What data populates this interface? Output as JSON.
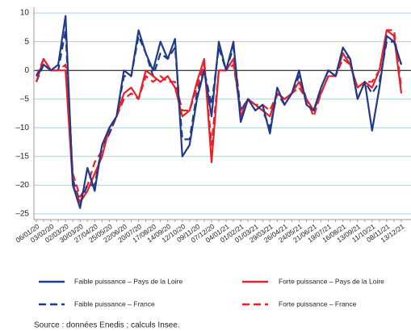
{
  "chart_data": {
    "type": "line",
    "categories": [
      "06/01/20",
      null,
      "03/02/20",
      null,
      "02/03/20",
      null,
      "30/03/20",
      null,
      "27/04/20",
      null,
      "25/05/20",
      null,
      "22/06/20",
      null,
      "20/07/20",
      null,
      "17/08/20",
      null,
      "14/09/20",
      null,
      "12/10/20",
      null,
      "09/11/20",
      null,
      "07/12/20",
      null,
      "04/01/21",
      null,
      "01/02/21",
      null,
      "01/03/21",
      null,
      "29/03/21",
      null,
      "26/04/21",
      null,
      "24/05/21",
      null,
      "21/06/21",
      null,
      "19/07/21",
      null,
      "16/08/21",
      null,
      "13/09/21",
      null,
      "11/10/21",
      null,
      "08/11/21",
      null,
      "13/12/21"
    ],
    "series": [
      {
        "name": "Faible puissance – Pays de la Loire",
        "color": "#1f3a8a",
        "dash": false,
        "values": [
          -1,
          1,
          0,
          1,
          9.5,
          -20,
          -24,
          -17,
          -21,
          -13,
          -10,
          -8,
          0,
          -1,
          7,
          3,
          0,
          5,
          2,
          5.5,
          -15,
          -13,
          -5,
          0,
          -8,
          5,
          0,
          5,
          -9,
          -5,
          -7,
          -6,
          -11,
          -3,
          -6,
          -4,
          0,
          -6,
          -7,
          -3,
          0,
          -1,
          4,
          2,
          -5,
          -2,
          -10.5,
          -3,
          6,
          5,
          1
        ]
      },
      {
        "name": "Forte puissance – Pays de la Loire",
        "color": "#e8202a",
        "dash": false,
        "values": [
          -2,
          2,
          0,
          0,
          0,
          -20,
          -23,
          -21,
          -18,
          -15,
          -10,
          -8,
          -4,
          -3,
          -5,
          0,
          -1,
          -2,
          -1,
          -3,
          -8,
          -7,
          -2,
          2,
          -16,
          0,
          0,
          2,
          -8,
          -5,
          -6,
          -7,
          -8,
          -4,
          -5,
          -4,
          -2,
          -5,
          -7,
          -4,
          -1,
          -1,
          3,
          1,
          -3,
          -2,
          -3,
          0,
          7,
          6,
          -4
        ]
      },
      {
        "name": "Faible puissance – France",
        "color": "#1f3a8a",
        "dash": true,
        "values": [
          -2,
          1,
          0,
          0,
          7,
          -19,
          -23,
          -20,
          -20,
          -13,
          -11,
          -8,
          -1,
          -1,
          6,
          3,
          -1,
          3,
          2,
          4,
          -12,
          -12,
          -4,
          0,
          -6,
          4,
          0,
          4,
          -7,
          -5,
          -6,
          -7,
          -10,
          -4,
          -6,
          -4,
          -1,
          -5,
          -7,
          -3,
          0,
          -1,
          3,
          2,
          -5,
          -2,
          -4,
          -2,
          5,
          5,
          1
        ]
      },
      {
        "name": "Forte puissance – France",
        "color": "#e8202a",
        "dash": true,
        "values": [
          -1,
          2,
          0,
          0,
          1,
          -18,
          -22,
          -20,
          -16,
          -14,
          -11,
          -8,
          -5,
          -4,
          -5,
          -1,
          -2,
          -1,
          -2,
          -2,
          -7,
          -7,
          -3,
          1,
          -13,
          0,
          0,
          1,
          -7,
          -5,
          -6,
          -6,
          -7,
          -4,
          -5,
          -4,
          -3,
          -5,
          -8,
          -4,
          -1,
          -1,
          2,
          1,
          -3,
          -2,
          -2,
          0,
          7,
          7,
          -3
        ]
      }
    ],
    "ylim": [
      -26,
      11
    ],
    "yticks": [
      {
        "value": -25,
        "label": "–25"
      },
      {
        "value": -20,
        "label": "–20"
      },
      {
        "value": -15,
        "label": "–15"
      },
      {
        "value": -10,
        "label": "–10"
      },
      {
        "value": -5,
        "label": "–5"
      },
      0,
      5,
      10
    ],
    "grid": true,
    "source": "Source : données Enedis ; calculs Insee."
  }
}
